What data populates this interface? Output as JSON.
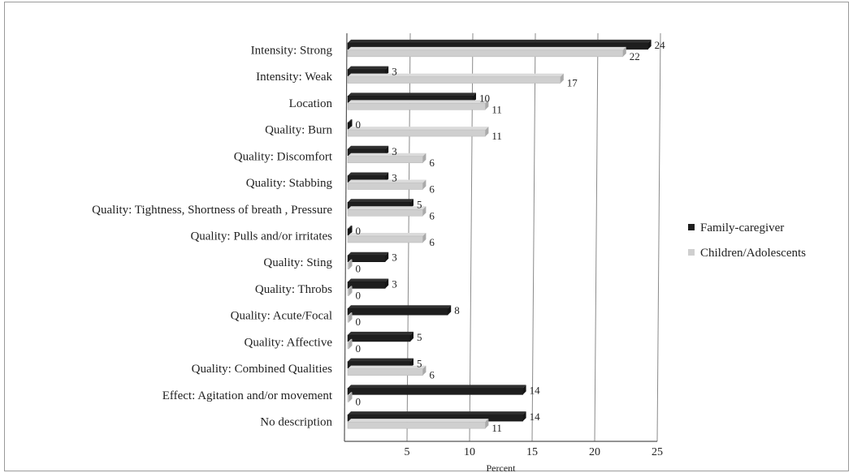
{
  "chart_data": {
    "type": "bar",
    "orientation": "horizontal",
    "categories": [
      "Intensity: Strong",
      "Intensity: Weak",
      "Location",
      "Quality: Burn",
      "Quality: Discomfort",
      "Quality: Stabbing",
      "Quality: Tightness,  Shortness of breath ,  Pressure",
      "Quality: Pulls and/or irritates",
      "Quality: Sting",
      "Quality: Throbs",
      "Quality: Acute/Focal",
      "Quality: Affective",
      "Quality: Combined Qualities",
      "Effect: Agitation and/or movement",
      "No description"
    ],
    "series": [
      {
        "name": "Family-caregiver",
        "color": "#1e1e1e",
        "values": [
          24,
          3,
          10,
          0,
          3,
          3,
          5,
          0,
          3,
          3,
          8,
          5,
          5,
          14,
          14
        ]
      },
      {
        "name": "Children/Adolescents",
        "color": "#cfcfcf",
        "values": [
          22,
          17,
          11,
          11,
          6,
          6,
          6,
          6,
          0,
          0,
          0,
          0,
          6,
          0,
          11
        ]
      }
    ],
    "xlabel": "Percent",
    "xlim": [
      0,
      25
    ],
    "xticks": [
      5,
      10,
      15,
      20,
      25
    ],
    "grid": true,
    "legend_position": "right"
  }
}
